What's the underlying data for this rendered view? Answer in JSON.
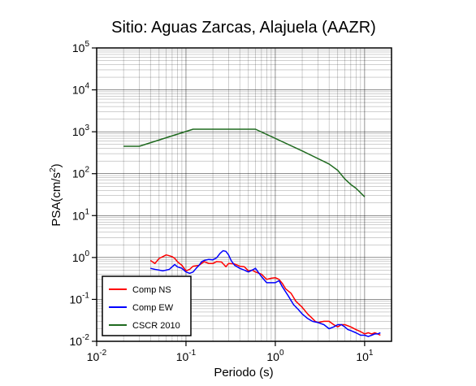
{
  "chart_data": {
    "type": "line",
    "title": "Sitio: Aguas Zarcas, Alajuela (AAZR)",
    "xlabel": "Periodo (s)",
    "ylabel": {
      "main": "PSA(cm/s",
      "sup": "2",
      "tail": ")"
    },
    "x_scale": "log",
    "y_scale": "log",
    "xlim": [
      0.01,
      20
    ],
    "ylim": [
      0.01,
      100000
    ],
    "grid": true,
    "legend_position": "bottom-left",
    "x_ticks": [
      {
        "value": 0.01,
        "base": "10",
        "exp": "-2"
      },
      {
        "value": 0.1,
        "base": "10",
        "exp": "-1"
      },
      {
        "value": 1,
        "base": "10",
        "exp": "0"
      },
      {
        "value": 10,
        "base": "10",
        "exp": "1"
      }
    ],
    "y_ticks": [
      {
        "value": 0.01,
        "base": "10",
        "exp": "-2"
      },
      {
        "value": 0.1,
        "base": "10",
        "exp": "-1"
      },
      {
        "value": 1,
        "base": "10",
        "exp": "0"
      },
      {
        "value": 10,
        "base": "10",
        "exp": "1"
      },
      {
        "value": 100,
        "base": "10",
        "exp": "2"
      },
      {
        "value": 1000,
        "base": "10",
        "exp": "3"
      },
      {
        "value": 10000,
        "base": "10",
        "exp": "4"
      },
      {
        "value": 100000,
        "base": "10",
        "exp": "5"
      }
    ],
    "series": [
      {
        "name": "Comp NS",
        "color": "#ff0000",
        "points": [
          [
            0.04,
            0.85
          ],
          [
            0.045,
            0.72
          ],
          [
            0.05,
            0.95
          ],
          [
            0.055,
            1.05
          ],
          [
            0.06,
            1.15
          ],
          [
            0.065,
            1.1
          ],
          [
            0.07,
            1.05
          ],
          [
            0.075,
            0.95
          ],
          [
            0.08,
            0.8
          ],
          [
            0.09,
            0.65
          ],
          [
            0.1,
            0.48
          ],
          [
            0.11,
            0.52
          ],
          [
            0.12,
            0.62
          ],
          [
            0.14,
            0.65
          ],
          [
            0.16,
            0.8
          ],
          [
            0.18,
            0.72
          ],
          [
            0.2,
            0.72
          ],
          [
            0.22,
            0.8
          ],
          [
            0.25,
            0.78
          ],
          [
            0.28,
            0.6
          ],
          [
            0.3,
            0.72
          ],
          [
            0.35,
            0.7
          ],
          [
            0.4,
            0.62
          ],
          [
            0.45,
            0.6
          ],
          [
            0.5,
            0.48
          ],
          [
            0.55,
            0.5
          ],
          [
            0.6,
            0.45
          ],
          [
            0.7,
            0.4
          ],
          [
            0.8,
            0.3
          ],
          [
            0.9,
            0.32
          ],
          [
            1.0,
            0.33
          ],
          [
            1.1,
            0.3
          ],
          [
            1.2,
            0.24
          ],
          [
            1.3,
            0.18
          ],
          [
            1.5,
            0.14
          ],
          [
            1.7,
            0.09
          ],
          [
            2.0,
            0.065
          ],
          [
            2.3,
            0.045
          ],
          [
            2.5,
            0.038
          ],
          [
            2.8,
            0.03
          ],
          [
            3.0,
            0.028
          ],
          [
            3.5,
            0.03
          ],
          [
            4.0,
            0.03
          ],
          [
            4.5,
            0.025
          ],
          [
            5.0,
            0.022
          ],
          [
            5.5,
            0.025
          ],
          [
            6.0,
            0.025
          ],
          [
            7.0,
            0.022
          ],
          [
            8.0,
            0.019
          ],
          [
            9.0,
            0.017
          ],
          [
            10.0,
            0.015
          ],
          [
            11.0,
            0.016
          ],
          [
            12.0,
            0.015
          ],
          [
            13.0,
            0.016
          ],
          [
            14.0,
            0.015
          ],
          [
            15.0,
            0.014
          ]
        ]
      },
      {
        "name": "Comp EW",
        "color": "#0000ff",
        "points": [
          [
            0.04,
            0.55
          ],
          [
            0.045,
            0.52
          ],
          [
            0.05,
            0.5
          ],
          [
            0.055,
            0.48
          ],
          [
            0.06,
            0.5
          ],
          [
            0.065,
            0.52
          ],
          [
            0.07,
            0.6
          ],
          [
            0.075,
            0.68
          ],
          [
            0.08,
            0.6
          ],
          [
            0.09,
            0.55
          ],
          [
            0.1,
            0.45
          ],
          [
            0.11,
            0.42
          ],
          [
            0.12,
            0.45
          ],
          [
            0.13,
            0.55
          ],
          [
            0.14,
            0.65
          ],
          [
            0.15,
            0.8
          ],
          [
            0.16,
            0.85
          ],
          [
            0.18,
            0.9
          ],
          [
            0.2,
            0.88
          ],
          [
            0.22,
            0.98
          ],
          [
            0.24,
            1.25
          ],
          [
            0.26,
            1.45
          ],
          [
            0.28,
            1.4
          ],
          [
            0.3,
            1.15
          ],
          [
            0.32,
            0.85
          ],
          [
            0.35,
            0.65
          ],
          [
            0.4,
            0.55
          ],
          [
            0.45,
            0.5
          ],
          [
            0.5,
            0.45
          ],
          [
            0.55,
            0.5
          ],
          [
            0.6,
            0.55
          ],
          [
            0.7,
            0.35
          ],
          [
            0.8,
            0.25
          ],
          [
            0.9,
            0.25
          ],
          [
            1.0,
            0.25
          ],
          [
            1.1,
            0.28
          ],
          [
            1.2,
            0.2
          ],
          [
            1.4,
            0.12
          ],
          [
            1.6,
            0.075
          ],
          [
            1.8,
            0.058
          ],
          [
            2.0,
            0.045
          ],
          [
            2.3,
            0.035
          ],
          [
            2.6,
            0.03
          ],
          [
            3.0,
            0.028
          ],
          [
            3.5,
            0.025
          ],
          [
            4.0,
            0.02
          ],
          [
            4.5,
            0.022
          ],
          [
            5.0,
            0.025
          ],
          [
            5.5,
            0.025
          ],
          [
            6.0,
            0.022
          ],
          [
            6.5,
            0.019
          ],
          [
            7.0,
            0.018
          ],
          [
            8.0,
            0.016
          ],
          [
            9.0,
            0.014
          ],
          [
            10.0,
            0.014
          ],
          [
            11.0,
            0.013
          ],
          [
            12.0,
            0.014
          ],
          [
            13.0,
            0.015
          ],
          [
            14.0,
            0.015
          ],
          [
            15.0,
            0.016
          ]
        ]
      },
      {
        "name": "CSCR 2010",
        "color": "#1f6a1f",
        "points": [
          [
            0.02,
            450
          ],
          [
            0.03,
            450
          ],
          [
            0.12,
            1150
          ],
          [
            0.6,
            1150
          ],
          [
            2.0,
            350
          ],
          [
            4.0,
            170
          ],
          [
            5.0,
            120
          ],
          [
            6.0,
            75
          ],
          [
            7.0,
            55
          ],
          [
            8.0,
            45
          ],
          [
            10.0,
            28
          ]
        ]
      }
    ]
  }
}
